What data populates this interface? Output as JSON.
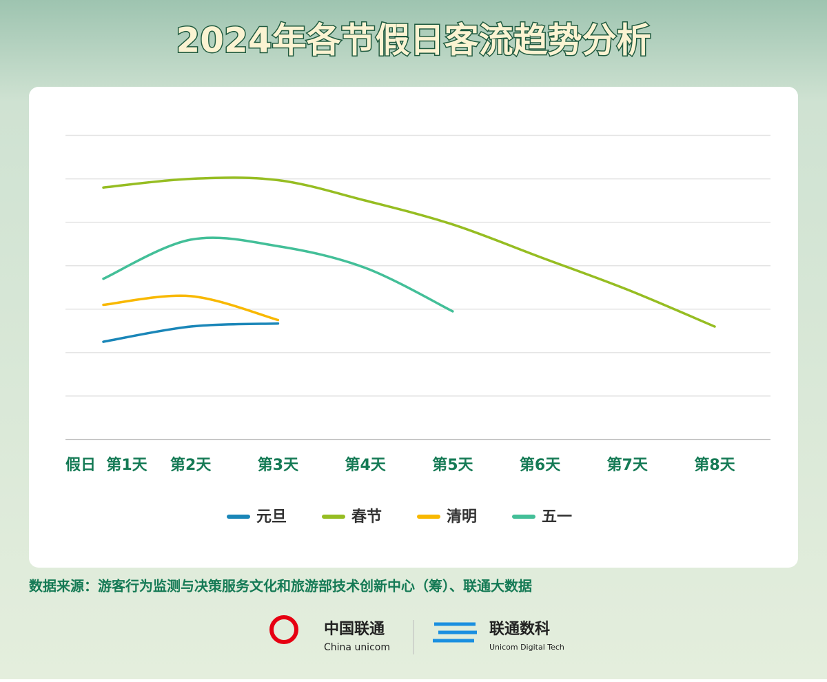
{
  "chart_data": {
    "type": "line",
    "title": "2024年各节假日客流趋势分析",
    "x_label": "假日",
    "categories": [
      "第1天",
      "第2天",
      "第3天",
      "第4天",
      "第5天",
      "第6天",
      "第7天",
      "第8天"
    ],
    "series": [
      {
        "name": "元旦",
        "color": "#1a86b8",
        "values": [
          2.25,
          2.6,
          2.67,
          null,
          null,
          null,
          null,
          null
        ]
      },
      {
        "name": "春节",
        "color": "#96bd22",
        "values": [
          5.8,
          6.0,
          5.97,
          5.5,
          4.95,
          4.2,
          3.45,
          2.6
        ]
      },
      {
        "name": "清明",
        "color": "#f8b800",
        "values": [
          3.1,
          3.3,
          2.75,
          null,
          null,
          null,
          null,
          null
        ]
      },
      {
        "name": "五一",
        "color": "#43bf98",
        "values": [
          3.7,
          4.6,
          4.45,
          3.95,
          2.95,
          null,
          null,
          null
        ]
      }
    ],
    "ylim": [
      0,
      7.5
    ],
    "yticks": [
      1,
      2,
      3,
      4,
      5,
      6,
      7
    ],
    "grid": true,
    "legend": "bottom",
    "source": "数据来源：游客行为监测与决策服务文化和旅游部技术创新中心（筹）、联通大数据"
  },
  "footer": {
    "logo1": "中国联通",
    "logo1_en": "China unicom",
    "logo2": "联通数科",
    "logo2_en": "Unicom Digital Tech"
  }
}
